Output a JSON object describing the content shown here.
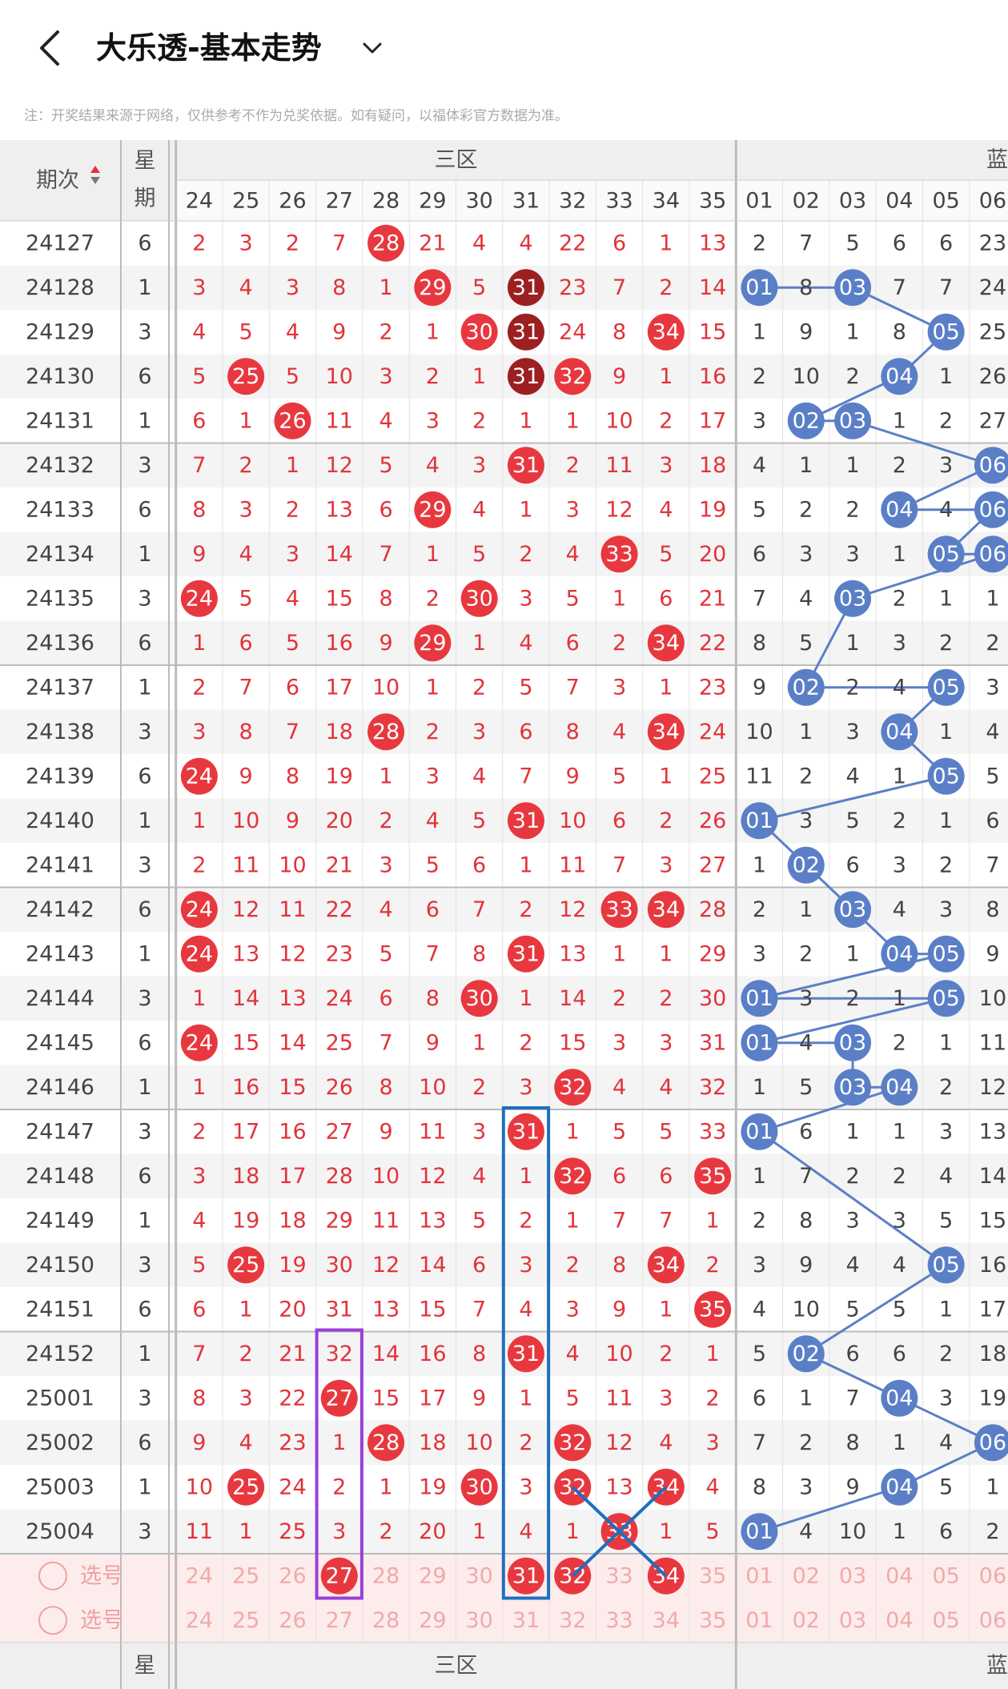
{
  "header": {
    "title": "大乐透-基本走势"
  },
  "note": "注：开奖结果来源于网络，仅供参考不作为兑奖依据。如有疑问，以福体彩官方数据为准。",
  "table": {
    "issue_header": "期次",
    "week_header_1": "星",
    "week_header_2": "期",
    "zone3_label": "三区",
    "blue_label": "蓝",
    "zone3_columns": [
      "24",
      "25",
      "26",
      "27",
      "28",
      "29",
      "30",
      "31",
      "32",
      "33",
      "34",
      "35"
    ],
    "blue_columns": [
      "01",
      "02",
      "03",
      "04",
      "05",
      "06"
    ],
    "rows": [
      {
        "issue": "24127",
        "week": "6",
        "zone3": [
          "2",
          "3",
          "2",
          "7",
          "28",
          "21",
          "4",
          "4",
          "22",
          "6",
          "1",
          "13"
        ],
        "zone3_hits": [
          4
        ],
        "blue": [
          "2",
          "7",
          "5",
          "6",
          "6",
          "23"
        ]
      },
      {
        "issue": "24128",
        "week": "1",
        "zone3": [
          "3",
          "4",
          "3",
          "8",
          "1",
          "29",
          "5",
          "31",
          "23",
          "7",
          "2",
          "14"
        ],
        "zone3_hits": [
          5,
          7
        ],
        "zone3_dark": [
          7
        ],
        "blue": [
          "01",
          "8",
          "03",
          "7",
          "7",
          "24"
        ],
        "blue_hits": [
          0,
          2
        ]
      },
      {
        "issue": "24129",
        "week": "3",
        "zone3": [
          "4",
          "5",
          "4",
          "9",
          "2",
          "1",
          "30",
          "31",
          "24",
          "8",
          "34",
          "15"
        ],
        "zone3_hits": [
          6,
          7,
          10
        ],
        "zone3_dark": [
          7
        ],
        "blue": [
          "1",
          "9",
          "1",
          "8",
          "05",
          "25"
        ],
        "blue_hits": [
          4
        ]
      },
      {
        "issue": "24130",
        "week": "6",
        "zone3": [
          "5",
          "25",
          "5",
          "10",
          "3",
          "2",
          "1",
          "31",
          "32",
          "9",
          "1",
          "16"
        ],
        "zone3_hits": [
          1,
          7,
          8
        ],
        "zone3_dark": [
          7
        ],
        "blue": [
          "2",
          "10",
          "2",
          "04",
          "1",
          "26"
        ],
        "blue_hits": [
          3
        ]
      },
      {
        "issue": "24131",
        "week": "1",
        "zone3": [
          "6",
          "1",
          "26",
          "11",
          "4",
          "3",
          "2",
          "1",
          "1",
          "10",
          "2",
          "17"
        ],
        "zone3_hits": [
          2
        ],
        "blue": [
          "3",
          "02",
          "03",
          "1",
          "2",
          "27"
        ],
        "blue_hits": [
          1,
          2
        ]
      },
      {
        "issue": "24132",
        "week": "3",
        "zone3": [
          "7",
          "2",
          "1",
          "12",
          "5",
          "4",
          "3",
          "31",
          "2",
          "11",
          "3",
          "18"
        ],
        "zone3_hits": [
          7
        ],
        "blue": [
          "4",
          "1",
          "1",
          "2",
          "3",
          "06"
        ],
        "blue_hits": [
          5
        ]
      },
      {
        "issue": "24133",
        "week": "6",
        "zone3": [
          "8",
          "3",
          "2",
          "13",
          "6",
          "29",
          "4",
          "1",
          "3",
          "12",
          "4",
          "19"
        ],
        "zone3_hits": [
          5
        ],
        "blue": [
          "5",
          "2",
          "2",
          "04",
          "4",
          "06"
        ],
        "blue_hits": [
          3,
          5
        ]
      },
      {
        "issue": "24134",
        "week": "1",
        "zone3": [
          "9",
          "4",
          "3",
          "14",
          "7",
          "1",
          "5",
          "2",
          "4",
          "33",
          "5",
          "20"
        ],
        "zone3_hits": [
          9
        ],
        "blue": [
          "6",
          "3",
          "3",
          "1",
          "05",
          "06"
        ],
        "blue_hits": [
          4,
          5
        ]
      },
      {
        "issue": "24135",
        "week": "3",
        "zone3": [
          "24",
          "5",
          "4",
          "15",
          "8",
          "2",
          "30",
          "3",
          "5",
          "1",
          "6",
          "21"
        ],
        "zone3_hits": [
          0,
          6
        ],
        "blue": [
          "7",
          "4",
          "03",
          "2",
          "1",
          "1"
        ],
        "blue_hits": [
          2
        ]
      },
      {
        "issue": "24136",
        "week": "6",
        "zone3": [
          "1",
          "6",
          "5",
          "16",
          "9",
          "29",
          "1",
          "4",
          "6",
          "2",
          "34",
          "22"
        ],
        "zone3_hits": [
          5,
          10
        ],
        "blue": [
          "8",
          "5",
          "1",
          "3",
          "2",
          "2"
        ]
      },
      {
        "issue": "24137",
        "week": "1",
        "zone3": [
          "2",
          "7",
          "6",
          "17",
          "10",
          "1",
          "2",
          "5",
          "7",
          "3",
          "1",
          "23"
        ],
        "blue": [
          "9",
          "02",
          "2",
          "4",
          "05",
          "3"
        ],
        "blue_hits": [
          1,
          4
        ]
      },
      {
        "issue": "24138",
        "week": "3",
        "zone3": [
          "3",
          "8",
          "7",
          "18",
          "28",
          "2",
          "3",
          "6",
          "8",
          "4",
          "34",
          "24"
        ],
        "zone3_hits": [
          4,
          10
        ],
        "blue": [
          "10",
          "1",
          "3",
          "04",
          "1",
          "4"
        ],
        "blue_hits": [
          3
        ]
      },
      {
        "issue": "24139",
        "week": "6",
        "zone3": [
          "24",
          "9",
          "8",
          "19",
          "1",
          "3",
          "4",
          "7",
          "9",
          "5",
          "1",
          "25"
        ],
        "zone3_hits": [
          0
        ],
        "blue": [
          "11",
          "2",
          "4",
          "1",
          "05",
          "5"
        ],
        "blue_hits": [
          4
        ]
      },
      {
        "issue": "24140",
        "week": "1",
        "zone3": [
          "1",
          "10",
          "9",
          "20",
          "2",
          "4",
          "5",
          "31",
          "10",
          "6",
          "2",
          "26"
        ],
        "zone3_hits": [
          7
        ],
        "blue": [
          "01",
          "3",
          "5",
          "2",
          "1",
          "6"
        ],
        "blue_hits": [
          0
        ]
      },
      {
        "issue": "24141",
        "week": "3",
        "zone3": [
          "2",
          "11",
          "10",
          "21",
          "3",
          "5",
          "6",
          "1",
          "11",
          "7",
          "3",
          "27"
        ],
        "blue": [
          "1",
          "02",
          "6",
          "3",
          "2",
          "7"
        ],
        "blue_hits": [
          1
        ]
      },
      {
        "issue": "24142",
        "week": "6",
        "zone3": [
          "24",
          "12",
          "11",
          "22",
          "4",
          "6",
          "7",
          "2",
          "12",
          "33",
          "34",
          "28"
        ],
        "zone3_hits": [
          0,
          9,
          10
        ],
        "blue": [
          "2",
          "1",
          "03",
          "4",
          "3",
          "8"
        ],
        "blue_hits": [
          2
        ]
      },
      {
        "issue": "24143",
        "week": "1",
        "zone3": [
          "24",
          "13",
          "12",
          "23",
          "5",
          "7",
          "8",
          "31",
          "13",
          "1",
          "1",
          "29"
        ],
        "zone3_hits": [
          0,
          7
        ],
        "blue": [
          "3",
          "2",
          "1",
          "04",
          "05",
          "9"
        ],
        "blue_hits": [
          3,
          4
        ]
      },
      {
        "issue": "24144",
        "week": "3",
        "zone3": [
          "1",
          "14",
          "13",
          "24",
          "6",
          "8",
          "30",
          "1",
          "14",
          "2",
          "2",
          "30"
        ],
        "zone3_hits": [
          6
        ],
        "blue": [
          "01",
          "3",
          "2",
          "1",
          "05",
          "10"
        ],
        "blue_hits": [
          0,
          4
        ]
      },
      {
        "issue": "24145",
        "week": "6",
        "zone3": [
          "24",
          "15",
          "14",
          "25",
          "7",
          "9",
          "1",
          "2",
          "15",
          "3",
          "3",
          "31"
        ],
        "zone3_hits": [
          0
        ],
        "blue": [
          "01",
          "4",
          "03",
          "2",
          "1",
          "11"
        ],
        "blue_hits": [
          0,
          2
        ]
      },
      {
        "issue": "24146",
        "week": "1",
        "zone3": [
          "1",
          "16",
          "15",
          "26",
          "8",
          "10",
          "2",
          "3",
          "32",
          "4",
          "4",
          "32"
        ],
        "zone3_hits": [
          8
        ],
        "blue": [
          "1",
          "5",
          "03",
          "04",
          "2",
          "12"
        ],
        "blue_hits": [
          2,
          3
        ]
      },
      {
        "issue": "24147",
        "week": "3",
        "zone3": [
          "2",
          "17",
          "16",
          "27",
          "9",
          "11",
          "3",
          "31",
          "1",
          "5",
          "5",
          "33"
        ],
        "zone3_hits": [
          7
        ],
        "blue": [
          "01",
          "6",
          "1",
          "1",
          "3",
          "13"
        ],
        "blue_hits": [
          0
        ]
      },
      {
        "issue": "24148",
        "week": "6",
        "zone3": [
          "3",
          "18",
          "17",
          "28",
          "10",
          "12",
          "4",
          "1",
          "32",
          "6",
          "6",
          "35"
        ],
        "zone3_hits": [
          8,
          11
        ],
        "blue": [
          "1",
          "7",
          "2",
          "2",
          "4",
          "14"
        ]
      },
      {
        "issue": "24149",
        "week": "1",
        "zone3": [
          "4",
          "19",
          "18",
          "29",
          "11",
          "13",
          "5",
          "2",
          "1",
          "7",
          "7",
          "1"
        ],
        "blue": [
          "2",
          "8",
          "3",
          "3",
          "5",
          "15"
        ]
      },
      {
        "issue": "24150",
        "week": "3",
        "zone3": [
          "5",
          "25",
          "19",
          "30",
          "12",
          "14",
          "6",
          "3",
          "2",
          "8",
          "34",
          "2"
        ],
        "zone3_hits": [
          1,
          10
        ],
        "blue": [
          "3",
          "9",
          "4",
          "4",
          "05",
          "16"
        ],
        "blue_hits": [
          4
        ]
      },
      {
        "issue": "24151",
        "week": "6",
        "zone3": [
          "6",
          "1",
          "20",
          "31",
          "13",
          "15",
          "7",
          "4",
          "3",
          "9",
          "1",
          "35"
        ],
        "zone3_hits": [
          11
        ],
        "blue": [
          "4",
          "10",
          "5",
          "5",
          "1",
          "17"
        ]
      },
      {
        "issue": "24152",
        "week": "1",
        "zone3": [
          "7",
          "2",
          "21",
          "32",
          "14",
          "16",
          "8",
          "31",
          "4",
          "10",
          "2",
          "1"
        ],
        "zone3_hits": [
          7
        ],
        "blue": [
          "5",
          "02",
          "6",
          "6",
          "2",
          "18"
        ],
        "blue_hits": [
          1
        ]
      },
      {
        "issue": "25001",
        "week": "3",
        "zone3": [
          "8",
          "3",
          "22",
          "27",
          "15",
          "17",
          "9",
          "1",
          "5",
          "11",
          "3",
          "2"
        ],
        "zone3_hits": [
          3
        ],
        "blue": [
          "6",
          "1",
          "7",
          "04",
          "3",
          "19"
        ],
        "blue_hits": [
          3
        ]
      },
      {
        "issue": "25002",
        "week": "6",
        "zone3": [
          "9",
          "4",
          "23",
          "1",
          "28",
          "18",
          "10",
          "2",
          "32",
          "12",
          "4",
          "3"
        ],
        "zone3_hits": [
          4,
          8
        ],
        "blue": [
          "7",
          "2",
          "8",
          "1",
          "4",
          "06"
        ],
        "blue_hits": [
          5
        ]
      },
      {
        "issue": "25003",
        "week": "1",
        "zone3": [
          "10",
          "25",
          "24",
          "2",
          "1",
          "19",
          "30",
          "3",
          "32",
          "13",
          "34",
          "4"
        ],
        "zone3_hits": [
          1,
          6,
          8,
          10
        ],
        "blue": [
          "8",
          "3",
          "9",
          "04",
          "5",
          "1"
        ],
        "blue_hits": [
          3
        ]
      },
      {
        "issue": "25004",
        "week": "3",
        "zone3": [
          "11",
          "1",
          "25",
          "3",
          "2",
          "20",
          "1",
          "4",
          "1",
          "33",
          "1",
          "5"
        ],
        "zone3_hits": [
          9
        ],
        "blue": [
          "01",
          "4",
          "10",
          "1",
          "6",
          "2"
        ],
        "blue_hits": [
          0
        ]
      }
    ],
    "select_rows": [
      {
        "label": "选号",
        "selected": [
          3,
          7,
          8,
          10
        ]
      },
      {
        "label": "选号"
      }
    ]
  }
}
